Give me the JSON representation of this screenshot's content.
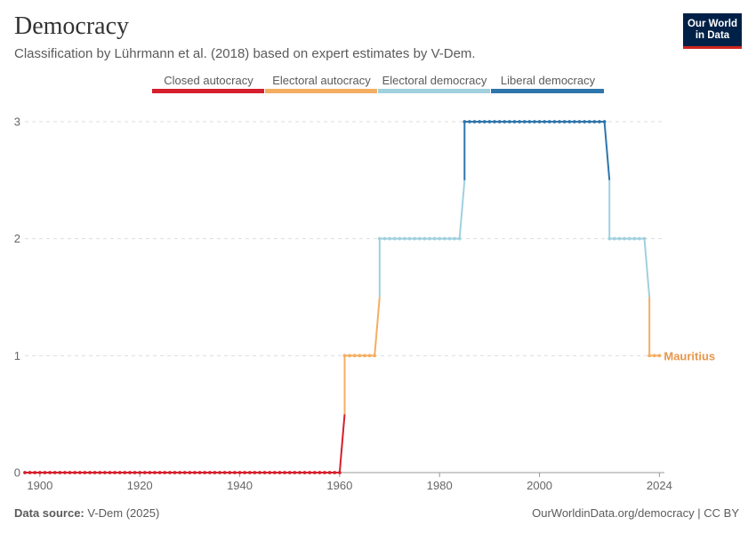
{
  "header": {
    "title": "Democracy",
    "subtitle": "Classification by Lührmann et al. (2018) based on expert estimates by V-Dem."
  },
  "logo": {
    "line1": "Our World",
    "line2": "in Data"
  },
  "footer": {
    "source_label": "Data source:",
    "source_value": "V-Dem (2025)",
    "link": "OurWorldinData.org/democracy | CC BY"
  },
  "chart_data": {
    "type": "line",
    "title": "Democracy",
    "subtitle": "Classification by Lührmann et al. (2018) based on expert estimates by V-Dem.",
    "xlabel": "",
    "ylabel": "",
    "xlim": [
      1897,
      2025
    ],
    "ylim": [
      0,
      3
    ],
    "x_ticks": [
      1900,
      1920,
      1940,
      1960,
      1980,
      2000,
      2024
    ],
    "y_ticks": [
      0,
      1,
      2,
      3
    ],
    "grid": "horizontal-dashed",
    "legend_position": "top",
    "legend": [
      {
        "label": "Closed autocracy",
        "color": "#d61f2c"
      },
      {
        "label": "Electoral autocracy",
        "color": "#f4ae62"
      },
      {
        "label": "Electoral democracy",
        "color": "#a1d0de"
      },
      {
        "label": "Liberal democracy",
        "color": "#2e75ac"
      }
    ],
    "level_colors": [
      "#d61f2c",
      "#f4ae62",
      "#a1d0de",
      "#2e75ac"
    ],
    "series": [
      {
        "name": "Mauritius",
        "label_color": "#e8964a",
        "segments": [
          {
            "start": 1897,
            "end": 1960,
            "value": 0
          },
          {
            "start": 1961,
            "end": 1967,
            "value": 1
          },
          {
            "start": 1968,
            "end": 1984,
            "value": 2
          },
          {
            "start": 1985,
            "end": 2013,
            "value": 3
          },
          {
            "start": 2014,
            "end": 2021,
            "value": 2
          },
          {
            "start": 2022,
            "end": 2024,
            "value": 1
          }
        ]
      }
    ]
  }
}
